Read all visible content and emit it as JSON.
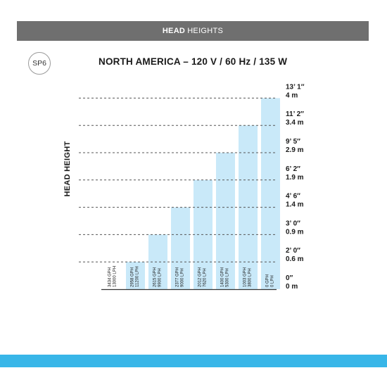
{
  "header": {
    "bold": "HEAD",
    "rest": "HEIGHTS"
  },
  "model": "SP6",
  "chart_data": {
    "type": "bar",
    "title": "NORTH AMERICA – 120 V / 60 Hz / 135 W",
    "ylabel": "HEAD HEIGHT",
    "xlabel": "",
    "ylim": [
      0,
      4
    ],
    "grid": true,
    "categories": [
      "3434 GPH 13000 LPH",
      "2958 GPH 11200 LPH",
      "2615 GPH 9900 LPH",
      "2377 GPH 9000 LPH",
      "2012 GPH 7620 LPH",
      "1400 GPH 5300 LPH",
      "1003 GPH 3800 LPH",
      "0 GPH 0 LPH"
    ],
    "bar_labels": [
      [
        "3434 GPH",
        "13000 LPH"
      ],
      [
        "2958 GPH",
        "11200 LPH"
      ],
      [
        "2615 GPH",
        "9900 LPH"
      ],
      [
        "2377 GPH",
        "9000 LPH"
      ],
      [
        "2012 GPH",
        "7620 LPH"
      ],
      [
        "1400 GPH",
        "5300 LPH"
      ],
      [
        "1003 GPH",
        "3800 LPH"
      ],
      [
        "0 GPH",
        "0 LPH"
      ]
    ],
    "values": [
      0,
      0.6,
      0.9,
      1.4,
      1.9,
      2.9,
      3.4,
      4
    ],
    "ticks": [
      {
        "value": 0,
        "imperial": "0″",
        "metric": "0 m"
      },
      {
        "value": 0.6,
        "imperial": "2’ 0″",
        "metric": "0.6 m"
      },
      {
        "value": 0.9,
        "imperial": "3’ 0″",
        "metric": "0.9 m"
      },
      {
        "value": 1.4,
        "imperial": "4’ 6″",
        "metric": "1.4 m"
      },
      {
        "value": 1.9,
        "imperial": "6’ 2″",
        "metric": "1.9 m"
      },
      {
        "value": 2.9,
        "imperial": "9’ 5″",
        "metric": "2.9 m"
      },
      {
        "value": 3.4,
        "imperial": "11’ 2″",
        "metric": "3.4 m"
      },
      {
        "value": 4,
        "imperial": "13’ 1″",
        "metric": "4 m"
      }
    ],
    "colors": {
      "bar": "#c9e9f9",
      "grid": "#555555",
      "axis": "#333333"
    }
  }
}
